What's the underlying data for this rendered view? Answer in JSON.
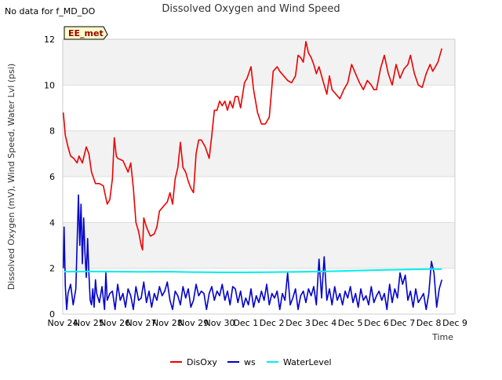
{
  "nodata_note": "No data for f_MD_DO",
  "badge": "EE_met",
  "chart_data": {
    "type": "line",
    "title": "Dissolved Oxygen and Wind Speed",
    "xlabel": "Time",
    "ylabel": "Dissolved Oxygen (mV), Wind Speed, Water Lvl (psi)",
    "x_ticks": [
      "Nov 24",
      "Nov 25",
      "Nov 26",
      "Nov 27",
      "Nov 28",
      "Nov 29",
      "Nov 30",
      "Dec 1",
      "Dec 2",
      "Dec 3",
      "Dec 4",
      "Dec 5",
      "Dec 6",
      "Dec 7",
      "Dec 8",
      "Dec 9"
    ],
    "y_ticks": [
      "0",
      "2",
      "4",
      "6",
      "8",
      "10",
      "12"
    ],
    "xlim": [
      0,
      15
    ],
    "ylim": [
      0,
      12
    ],
    "grid": true,
    "legend_position": "bottom-center",
    "colors": {
      "DisOxy": "#ee0000",
      "ws": "#0000cc",
      "WaterLevel": "#00eeee",
      "band": "#f2f2f2"
    },
    "series": [
      {
        "name": "DisOxy",
        "x": [
          0.02,
          0.1,
          0.2,
          0.3,
          0.42,
          0.55,
          0.62,
          0.75,
          0.9,
          1.0,
          1.1,
          1.25,
          1.4,
          1.55,
          1.7,
          1.8,
          1.9,
          1.97,
          2.05,
          2.1,
          2.3,
          2.5,
          2.6,
          2.7,
          2.8,
          2.9,
          3.0,
          3.05,
          3.1,
          3.2,
          3.35,
          3.5,
          3.6,
          3.7,
          3.85,
          4.0,
          4.1,
          4.2,
          4.3,
          4.4,
          4.5,
          4.6,
          4.7,
          4.8,
          4.9,
          5.0,
          5.1,
          5.2,
          5.3,
          5.45,
          5.6,
          5.7,
          5.8,
          5.9,
          6.0,
          6.1,
          6.2,
          6.3,
          6.4,
          6.5,
          6.6,
          6.7,
          6.8,
          6.95,
          7.05,
          7.2,
          7.3,
          7.45,
          7.6,
          7.75,
          7.9,
          8.05,
          8.2,
          8.3,
          8.45,
          8.6,
          8.75,
          8.9,
          9.0,
          9.1,
          9.2,
          9.3,
          9.4,
          9.5,
          9.6,
          9.7,
          9.8,
          9.9,
          10.0,
          10.1,
          10.2,
          10.3,
          10.45,
          10.6,
          10.75,
          10.9,
          11.05,
          11.2,
          11.35,
          11.5,
          11.65,
          11.8,
          11.9,
          12.0,
          12.15,
          12.3,
          12.45,
          12.6,
          12.75,
          12.9,
          13.05,
          13.2,
          13.3,
          13.45,
          13.6,
          13.75,
          13.9,
          14.05,
          14.15,
          14.25,
          14.35,
          14.5
        ],
        "y": [
          8.8,
          7.8,
          7.3,
          6.9,
          6.8,
          6.6,
          6.9,
          6.6,
          7.3,
          7.0,
          6.2,
          5.7,
          5.7,
          5.6,
          4.8,
          5.0,
          5.9,
          7.7,
          6.9,
          6.8,
          6.7,
          6.2,
          6.6,
          5.5,
          4.0,
          3.6,
          3.0,
          2.8,
          4.2,
          3.8,
          3.4,
          3.5,
          3.8,
          4.5,
          4.7,
          4.9,
          5.3,
          4.8,
          5.9,
          6.4,
          7.5,
          6.4,
          6.2,
          5.8,
          5.5,
          5.3,
          7.0,
          7.6,
          7.6,
          7.3,
          6.8,
          7.8,
          8.9,
          8.9,
          9.3,
          9.1,
          9.3,
          8.9,
          9.3,
          9.0,
          9.5,
          9.5,
          9.0,
          10.1,
          10.3,
          10.8,
          9.8,
          8.8,
          8.3,
          8.3,
          8.6,
          10.6,
          10.8,
          10.6,
          10.4,
          10.2,
          10.1,
          10.4,
          11.3,
          11.2,
          11.0,
          11.9,
          11.4,
          11.2,
          10.9,
          10.5,
          10.8,
          10.4,
          10.0,
          9.6,
          10.4,
          9.8,
          9.6,
          9.4,
          9.8,
          10.1,
          10.9,
          10.5,
          10.1,
          9.8,
          10.2,
          10.0,
          9.8,
          9.8,
          10.7,
          11.3,
          10.5,
          10.0,
          10.9,
          10.3,
          10.7,
          10.9,
          11.3,
          10.5,
          10.0,
          9.9,
          10.5,
          10.9,
          10.6,
          10.8,
          11.0,
          11.6
        ]
      },
      {
        "name": "ws",
        "x": [
          0.02,
          0.05,
          0.1,
          0.15,
          0.2,
          0.3,
          0.4,
          0.5,
          0.6,
          0.65,
          0.7,
          0.75,
          0.8,
          0.85,
          0.9,
          0.95,
          1.0,
          1.05,
          1.1,
          1.15,
          1.2,
          1.25,
          1.3,
          1.4,
          1.5,
          1.6,
          1.65,
          1.7,
          1.8,
          1.9,
          2.0,
          2.1,
          2.2,
          2.3,
          2.4,
          2.5,
          2.6,
          2.7,
          2.8,
          2.9,
          3.0,
          3.1,
          3.2,
          3.3,
          3.4,
          3.5,
          3.6,
          3.7,
          3.8,
          3.9,
          4.0,
          4.1,
          4.2,
          4.3,
          4.4,
          4.5,
          4.6,
          4.7,
          4.8,
          4.9,
          5.0,
          5.1,
          5.2,
          5.3,
          5.4,
          5.5,
          5.6,
          5.7,
          5.8,
          5.9,
          6.0,
          6.1,
          6.2,
          6.3,
          6.4,
          6.5,
          6.6,
          6.7,
          6.8,
          6.9,
          7.0,
          7.1,
          7.2,
          7.3,
          7.4,
          7.5,
          7.6,
          7.7,
          7.8,
          7.9,
          8.0,
          8.1,
          8.2,
          8.3,
          8.4,
          8.5,
          8.6,
          8.7,
          8.8,
          8.9,
          9.0,
          9.1,
          9.2,
          9.3,
          9.4,
          9.5,
          9.6,
          9.7,
          9.8,
          9.9,
          10.0,
          10.1,
          10.2,
          10.3,
          10.4,
          10.5,
          10.6,
          10.7,
          10.8,
          10.9,
          11.0,
          11.1,
          11.2,
          11.3,
          11.4,
          11.5,
          11.6,
          11.7,
          11.8,
          11.9,
          12.0,
          12.1,
          12.2,
          12.3,
          12.4,
          12.5,
          12.6,
          12.7,
          12.8,
          12.9,
          13.0,
          13.1,
          13.2,
          13.3,
          13.4,
          13.5,
          13.6,
          13.7,
          13.8,
          13.9,
          14.0,
          14.1,
          14.2,
          14.3,
          14.4,
          14.5
        ],
        "y": [
          2.0,
          3.8,
          1.2,
          0.2,
          0.9,
          1.3,
          0.4,
          1.1,
          5.2,
          3.0,
          4.8,
          2.2,
          4.2,
          2.7,
          1.6,
          3.3,
          1.8,
          0.6,
          0.4,
          1.1,
          0.3,
          1.5,
          0.9,
          0.5,
          1.2,
          0.2,
          1.8,
          0.6,
          0.9,
          1.0,
          0.2,
          1.3,
          0.6,
          0.9,
          0.3,
          1.1,
          0.8,
          0.2,
          1.2,
          0.6,
          0.7,
          1.4,
          0.5,
          1.0,
          0.3,
          0.9,
          0.6,
          1.2,
          0.8,
          1.0,
          1.4,
          0.6,
          0.2,
          1.0,
          0.8,
          0.4,
          1.2,
          0.7,
          1.1,
          0.3,
          0.6,
          1.3,
          0.8,
          1.0,
          0.9,
          0.2,
          0.9,
          1.2,
          0.6,
          1.0,
          0.8,
          1.3,
          0.6,
          1.0,
          0.4,
          1.2,
          1.1,
          0.5,
          1.0,
          0.3,
          0.7,
          0.4,
          1.1,
          0.3,
          0.8,
          0.5,
          1.0,
          0.6,
          1.3,
          0.4,
          0.9,
          0.7,
          1.0,
          0.2,
          0.9,
          0.6,
          1.8,
          0.4,
          0.7,
          1.1,
          0.2,
          0.8,
          1.0,
          0.5,
          1.1,
          0.8,
          1.2,
          0.4,
          2.4,
          0.7,
          2.5,
          0.6,
          1.1,
          0.4,
          1.2,
          0.6,
          0.9,
          0.4,
          1.0,
          0.7,
          1.2,
          0.5,
          0.9,
          0.3,
          1.1,
          0.6,
          0.8,
          0.4,
          1.2,
          0.5,
          0.8,
          1.0,
          0.6,
          0.9,
          0.2,
          1.3,
          0.5,
          1.1,
          0.7,
          1.8,
          1.3,
          1.7,
          0.6,
          1.0,
          0.3,
          1.1,
          0.5,
          0.7,
          0.9,
          0.2,
          0.9,
          2.3,
          1.8,
          0.3,
          1.1,
          1.5
        ]
      },
      {
        "name": "WaterLevel",
        "x": [
          0.05,
          1.0,
          2.0,
          3.0,
          4.0,
          5.0,
          6.0,
          7.0,
          8.0,
          9.0,
          10.0,
          11.0,
          12.0,
          13.0,
          14.0,
          14.5
        ],
        "y": [
          1.85,
          1.86,
          1.85,
          1.84,
          1.85,
          1.83,
          1.82,
          1.82,
          1.83,
          1.84,
          1.86,
          1.89,
          1.92,
          1.94,
          1.96,
          1.96
        ]
      }
    ]
  }
}
